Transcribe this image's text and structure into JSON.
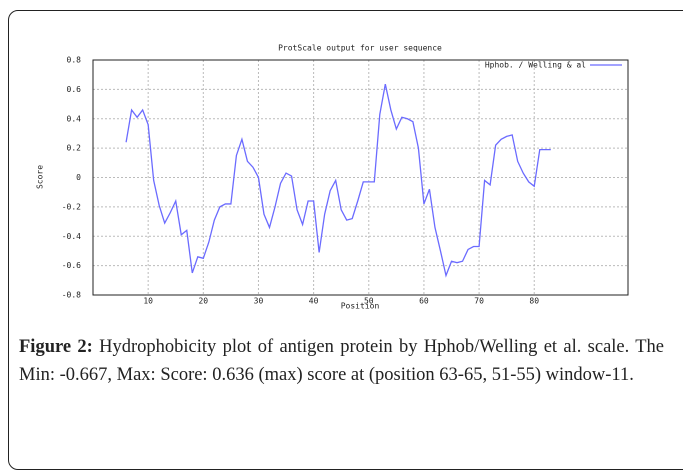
{
  "chart_data": {
    "type": "line",
    "title": "ProtScale output for user sequence",
    "xlabel": "Position",
    "ylabel": "Score",
    "x": [
      6,
      7,
      8,
      9,
      10,
      11,
      12,
      13,
      14,
      15,
      16,
      17,
      18,
      19,
      20,
      21,
      22,
      23,
      24,
      25,
      26,
      27,
      28,
      29,
      30,
      31,
      32,
      33,
      34,
      35,
      36,
      37,
      38,
      39,
      40,
      41,
      42,
      43,
      44,
      45,
      46,
      47,
      48,
      49,
      50,
      51,
      52,
      53,
      54,
      55,
      56,
      57,
      58,
      59,
      60,
      61,
      62,
      63,
      64,
      65,
      66,
      67,
      68,
      69,
      70,
      71,
      72,
      73,
      74,
      75,
      76,
      77,
      78,
      79,
      80,
      81,
      82,
      83
    ],
    "series": [
      {
        "name": "Hphob. / Welling & al",
        "color": "#6b6bff",
        "values": [
          0.24,
          0.46,
          0.41,
          0.46,
          0.36,
          -0.02,
          -0.19,
          -0.31,
          -0.24,
          -0.16,
          -0.39,
          -0.36,
          -0.65,
          -0.54,
          -0.55,
          -0.44,
          -0.29,
          -0.2,
          -0.18,
          -0.18,
          0.15,
          0.26,
          0.11,
          0.07,
          0.0,
          -0.25,
          -0.34,
          -0.2,
          -0.04,
          0.03,
          0.01,
          -0.22,
          -0.32,
          -0.16,
          -0.16,
          -0.51,
          -0.25,
          -0.09,
          -0.02,
          -0.22,
          -0.29,
          -0.28,
          -0.16,
          -0.03,
          -0.03,
          -0.03,
          0.43,
          0.636,
          0.46,
          0.33,
          0.41,
          0.4,
          0.38,
          0.2,
          -0.18,
          -0.08,
          -0.34,
          -0.5,
          -0.667,
          -0.57,
          -0.58,
          -0.57,
          -0.49,
          -0.47,
          -0.47,
          -0.02,
          -0.05,
          0.22,
          0.26,
          0.28,
          0.29,
          0.11,
          0.03,
          -0.03,
          -0.06,
          0.19,
          0.19,
          0.19
        ]
      }
    ],
    "xlim": [
      0,
      97
    ],
    "ylim": [
      -0.8,
      0.8
    ],
    "xticks": [
      10,
      20,
      30,
      40,
      50,
      60,
      70,
      80
    ],
    "yticks": [
      -0.8,
      -0.6,
      -0.4,
      -0.2,
      0,
      0.2,
      0.4,
      0.6,
      0.8
    ],
    "grid": true,
    "legend": "upper right"
  },
  "caption": {
    "label": "Figure 2:",
    "text": "Hydrophobicity plot of antigen protein by Hphob/Welling et al. scale. The Min: -0.667, Max: Score: 0.636 (max) score at (position 63-65, 51-55) window-11."
  }
}
